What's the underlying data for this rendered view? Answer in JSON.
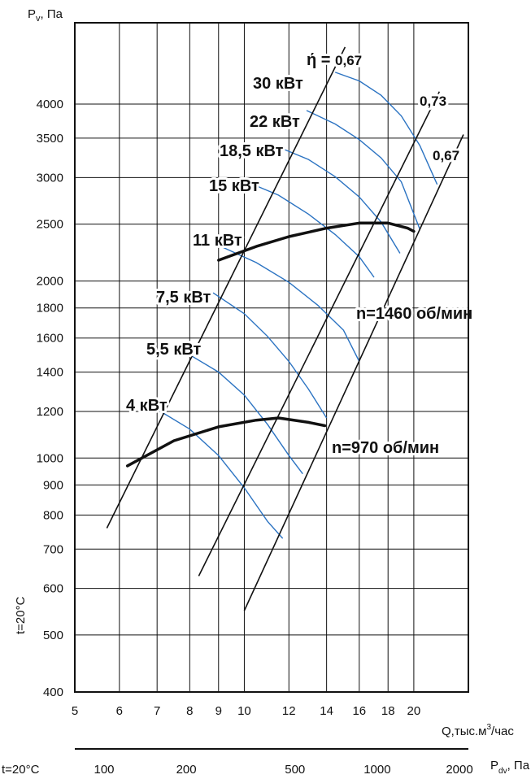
{
  "chart_data": {
    "type": "line",
    "y_axis": {
      "label": "P",
      "label_sub": "v",
      "label_unit": ", Па",
      "scale": "log",
      "range": [
        400,
        5500
      ],
      "ticks": [
        4000,
        3500,
        3000,
        2500,
        2000,
        1800,
        1600,
        1400,
        1200,
        1000,
        900,
        800,
        700,
        600,
        500,
        400
      ]
    },
    "x_axis": {
      "label_pre": "Q,тыс.м",
      "label_sup": "3",
      "label_post": "/час",
      "scale": "log",
      "range": [
        5,
        25
      ],
      "ticks": [
        5,
        6,
        7,
        8,
        9,
        10,
        12,
        14,
        16,
        18,
        20
      ]
    },
    "temp_label_left": "t=20°C",
    "bottom_axis": {
      "temp_label": "t=20°C",
      "ticks": [
        "100",
        "200",
        "500",
        "1000",
        "2000"
      ],
      "tick_values": [
        100,
        200,
        500,
        1000,
        2000
      ],
      "label": "P",
      "label_sub": "dv",
      "label_unit": ", Па"
    },
    "grid": true,
    "power_curves": [
      {
        "label": "4 кВт",
        "points": [
          [
            7.0,
            1210
          ],
          [
            8.0,
            1120
          ],
          [
            9.0,
            1010
          ],
          [
            10.0,
            890
          ],
          [
            11.0,
            780
          ],
          [
            11.7,
            730
          ]
        ]
      },
      {
        "label": "5,5 кВт",
        "points": [
          [
            7.8,
            1520
          ],
          [
            9.0,
            1400
          ],
          [
            10.0,
            1280
          ],
          [
            11.0,
            1140
          ],
          [
            12.0,
            1010
          ],
          [
            12.7,
            940
          ]
        ]
      },
      {
        "label": "7,5 кВт",
        "points": [
          [
            8.8,
            1910
          ],
          [
            10.0,
            1760
          ],
          [
            11.0,
            1610
          ],
          [
            12.0,
            1460
          ],
          [
            13.0,
            1310
          ],
          [
            14.0,
            1170
          ]
        ]
      },
      {
        "label": "11 кВт",
        "points": [
          [
            9.0,
            2300
          ],
          [
            10.5,
            2150
          ],
          [
            12.0,
            1990
          ],
          [
            13.5,
            1820
          ],
          [
            15.0,
            1650
          ],
          [
            16.0,
            1460
          ]
        ]
      },
      {
        "label": "15 кВт",
        "points": [
          [
            10.1,
            2950
          ],
          [
            11.5,
            2800
          ],
          [
            13.0,
            2600
          ],
          [
            14.5,
            2400
          ],
          [
            16.0,
            2200
          ],
          [
            17.0,
            2030
          ]
        ]
      },
      {
        "label": "18,5 кВт",
        "points": [
          [
            11.5,
            3380
          ],
          [
            13.0,
            3220
          ],
          [
            14.5,
            3010
          ],
          [
            16.0,
            2780
          ],
          [
            17.5,
            2520
          ],
          [
            18.9,
            2230
          ]
        ]
      },
      {
        "label": "22 кВт",
        "points": [
          [
            12.9,
            3900
          ],
          [
            14.5,
            3700
          ],
          [
            16.0,
            3480
          ],
          [
            17.5,
            3240
          ],
          [
            19.0,
            2950
          ],
          [
            20.5,
            2450
          ]
        ]
      },
      {
        "label": "30 кВт",
        "points": [
          [
            14.5,
            4530
          ],
          [
            16.0,
            4380
          ],
          [
            17.5,
            4140
          ],
          [
            19.0,
            3820
          ],
          [
            20.5,
            3400
          ],
          [
            22.0,
            2920
          ]
        ]
      }
    ],
    "speed_curves": [
      {
        "label": "n=970 об/мин",
        "points": [
          [
            6.2,
            970
          ],
          [
            7.5,
            1070
          ],
          [
            9.0,
            1130
          ],
          [
            10.5,
            1160
          ],
          [
            11.5,
            1170
          ],
          [
            13.0,
            1150
          ],
          [
            13.9,
            1135
          ]
        ]
      },
      {
        "label": "n=1460 об/мин",
        "points": [
          [
            9.0,
            2170
          ],
          [
            10.5,
            2290
          ],
          [
            12.0,
            2380
          ],
          [
            14.0,
            2460
          ],
          [
            16.0,
            2510
          ],
          [
            18.0,
            2510
          ],
          [
            19.5,
            2460
          ],
          [
            20.0,
            2430
          ]
        ]
      }
    ],
    "efficiency_lines": [
      {
        "label": "0,67",
        "prefix": "ή = ",
        "points": [
          [
            5.7,
            760
          ],
          [
            15.1,
            5000
          ]
        ]
      },
      {
        "label": "0,73",
        "points": [
          [
            8.3,
            630
          ],
          [
            22.2,
            4200
          ]
        ]
      },
      {
        "label": "0,67",
        "points": [
          [
            10.0,
            550
          ],
          [
            24.5,
            3550
          ]
        ]
      }
    ]
  }
}
